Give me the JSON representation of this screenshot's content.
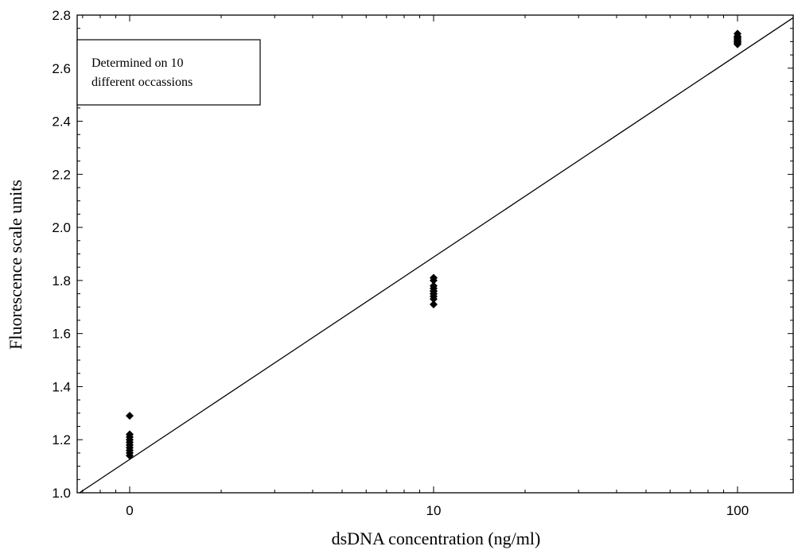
{
  "chart_data": {
    "type": "scatter",
    "title": "",
    "xlabel": "dsDNA concentration (ng/ml)",
    "ylabel": "Fluorescence scale units",
    "x_scale": "categorical-log",
    "x_ticks": [
      "0",
      "10",
      "100"
    ],
    "ylim": [
      1.0,
      2.8
    ],
    "y_ticks": [
      "1.0",
      "1.2",
      "1.4",
      "1.6",
      "1.8",
      "2.0",
      "2.2",
      "2.4",
      "2.6",
      "2.8"
    ],
    "grid": false,
    "legend": null,
    "annotation": [
      "Determined on 10",
      "different occassions"
    ],
    "series": [
      {
        "points": [
          {
            "x": "0",
            "y": 1.29
          },
          {
            "x": "0",
            "y": 1.22
          },
          {
            "x": "0",
            "y": 1.21
          },
          {
            "x": "0",
            "y": 1.2
          },
          {
            "x": "0",
            "y": 1.19
          },
          {
            "x": "0",
            "y": 1.18
          },
          {
            "x": "0",
            "y": 1.17
          },
          {
            "x": "0",
            "y": 1.16
          },
          {
            "x": "0",
            "y": 1.15
          },
          {
            "x": "0",
            "y": 1.14
          },
          {
            "x": "10",
            "y": 1.81
          },
          {
            "x": "10",
            "y": 1.8
          },
          {
            "x": "10",
            "y": 1.78
          },
          {
            "x": "10",
            "y": 1.77
          },
          {
            "x": "10",
            "y": 1.76
          },
          {
            "x": "10",
            "y": 1.75
          },
          {
            "x": "10",
            "y": 1.74
          },
          {
            "x": "10",
            "y": 1.73
          },
          {
            "x": "10",
            "y": 1.71
          },
          {
            "x": "10",
            "y": 1.76
          },
          {
            "x": "100",
            "y": 2.73
          },
          {
            "x": "100",
            "y": 2.72
          },
          {
            "x": "100",
            "y": 2.715
          },
          {
            "x": "100",
            "y": 2.71
          },
          {
            "x": "100",
            "y": 2.705
          },
          {
            "x": "100",
            "y": 2.7
          },
          {
            "x": "100",
            "y": 2.695
          },
          {
            "x": "100",
            "y": 2.69
          },
          {
            "x": "100",
            "y": 2.72
          },
          {
            "x": "100",
            "y": 2.7
          }
        ]
      }
    ],
    "fit_line": {
      "type": "linear",
      "from_y": 1.0,
      "to_y": 2.79
    },
    "colors": {
      "points": "#000000",
      "line": "#000000",
      "axis": "#000000"
    }
  }
}
